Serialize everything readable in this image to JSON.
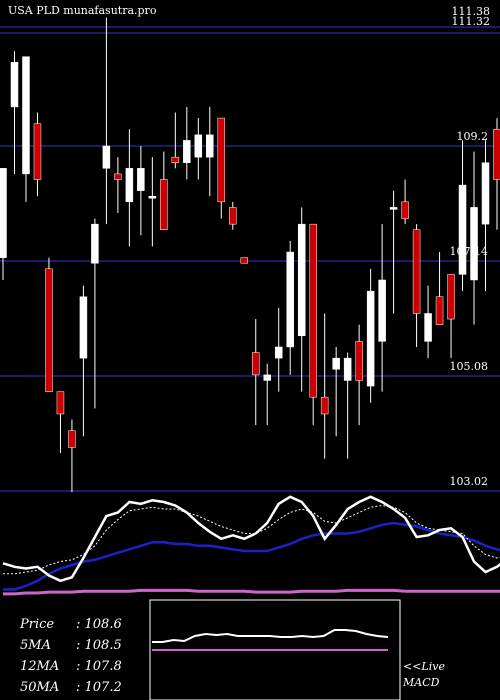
{
  "header": {
    "title": "USA PLD munafasutra.pro",
    "top_price": "111.38",
    "top_price_alt": "111.32"
  },
  "chart_data": {
    "type": "candlestick",
    "symbol": "PLD",
    "yaxis_ticks": [
      103.02,
      105.08,
      107.14,
      109.2,
      111.38
    ],
    "ylim": [
      103.02,
      111.5
    ],
    "candles": [
      {
        "o": 107.2,
        "h": 108.8,
        "l": 106.8,
        "c": 108.8,
        "up": true
      },
      {
        "o": 109.9,
        "h": 110.9,
        "l": 108.7,
        "c": 110.7,
        "up": true
      },
      {
        "o": 108.7,
        "h": 110.8,
        "l": 108.2,
        "c": 110.8,
        "up": true
      },
      {
        "o": 109.6,
        "h": 109.8,
        "l": 108.3,
        "c": 108.6,
        "up": false
      },
      {
        "o": 107.0,
        "h": 107.2,
        "l": 104.8,
        "c": 104.8,
        "up": false
      },
      {
        "o": 104.4,
        "h": 104.8,
        "l": 103.7,
        "c": 104.8,
        "up": false
      },
      {
        "o": 103.8,
        "h": 104.3,
        "l": 103.0,
        "c": 104.1,
        "up": false
      },
      {
        "o": 105.4,
        "h": 106.7,
        "l": 104.0,
        "c": 106.5,
        "up": true
      },
      {
        "o": 107.1,
        "h": 107.9,
        "l": 104.5,
        "c": 107.8,
        "up": true
      },
      {
        "o": 108.8,
        "h": 111.5,
        "l": 107.8,
        "c": 109.2,
        "up": true
      },
      {
        "o": 108.6,
        "h": 109.0,
        "l": 108.0,
        "c": 108.7,
        "up": false
      },
      {
        "o": 108.2,
        "h": 109.5,
        "l": 107.4,
        "c": 108.8,
        "up": true
      },
      {
        "o": 108.4,
        "h": 109.2,
        "l": 107.6,
        "c": 108.8,
        "up": true
      },
      {
        "o": 108.3,
        "h": 109.0,
        "l": 107.4,
        "c": 108.3,
        "up": true
      },
      {
        "o": 108.6,
        "h": 109.1,
        "l": 107.7,
        "c": 107.7,
        "up": false
      },
      {
        "o": 109.0,
        "h": 109.8,
        "l": 108.8,
        "c": 108.9,
        "up": false
      },
      {
        "o": 108.9,
        "h": 109.9,
        "l": 108.6,
        "c": 109.3,
        "up": true
      },
      {
        "o": 109.0,
        "h": 109.7,
        "l": 108.6,
        "c": 109.4,
        "up": true
      },
      {
        "o": 109.0,
        "h": 109.9,
        "l": 108.3,
        "c": 109.4,
        "up": true
      },
      {
        "o": 109.7,
        "h": 109.7,
        "l": 107.9,
        "c": 108.2,
        "up": false
      },
      {
        "o": 108.1,
        "h": 108.2,
        "l": 107.7,
        "c": 107.8,
        "up": false
      },
      {
        "o": 107.2,
        "h": 107.2,
        "l": 107.1,
        "c": 107.1,
        "up": false
      },
      {
        "o": 105.1,
        "h": 106.1,
        "l": 104.2,
        "c": 105.5,
        "up": false
      },
      {
        "o": 105.0,
        "h": 105.3,
        "l": 104.2,
        "c": 105.1,
        "up": true
      },
      {
        "o": 105.4,
        "h": 106.3,
        "l": 104.8,
        "c": 105.6,
        "up": true
      },
      {
        "o": 105.6,
        "h": 107.5,
        "l": 105.1,
        "c": 107.3,
        "up": true
      },
      {
        "o": 105.8,
        "h": 108.1,
        "l": 104.8,
        "c": 107.8,
        "up": true
      },
      {
        "o": 107.8,
        "h": 107.8,
        "l": 104.2,
        "c": 104.7,
        "up": false
      },
      {
        "o": 104.7,
        "h": 106.2,
        "l": 103.6,
        "c": 104.4,
        "up": false
      },
      {
        "o": 105.2,
        "h": 105.6,
        "l": 104.0,
        "c": 105.4,
        "up": true
      },
      {
        "o": 105.0,
        "h": 105.5,
        "l": 103.6,
        "c": 105.4,
        "up": true
      },
      {
        "o": 105.7,
        "h": 106.0,
        "l": 104.2,
        "c": 105.0,
        "up": false
      },
      {
        "o": 104.9,
        "h": 107.0,
        "l": 104.6,
        "c": 106.6,
        "up": true
      },
      {
        "o": 105.7,
        "h": 107.8,
        "l": 104.8,
        "c": 106.8,
        "up": true
      },
      {
        "o": 108.1,
        "h": 108.4,
        "l": 106.2,
        "c": 108.1,
        "up": true
      },
      {
        "o": 108.2,
        "h": 108.6,
        "l": 107.8,
        "c": 107.9,
        "up": false
      },
      {
        "o": 107.7,
        "h": 107.8,
        "l": 105.6,
        "c": 106.2,
        "up": false
      },
      {
        "o": 105.7,
        "h": 106.7,
        "l": 105.4,
        "c": 106.2,
        "up": true
      },
      {
        "o": 106.5,
        "h": 107.3,
        "l": 106.0,
        "c": 106.0,
        "up": false
      },
      {
        "o": 106.9,
        "h": 106.9,
        "l": 105.4,
        "c": 106.1,
        "up": false
      },
      {
        "o": 106.9,
        "h": 109.3,
        "l": 106.6,
        "c": 108.5,
        "up": true
      },
      {
        "o": 106.8,
        "h": 109.1,
        "l": 106.0,
        "c": 108.1,
        "up": true
      },
      {
        "o": 107.8,
        "h": 109.3,
        "l": 106.6,
        "c": 108.9,
        "up": true
      },
      {
        "o": 109.5,
        "h": 109.7,
        "l": 107.7,
        "c": 108.6,
        "up": false
      }
    ],
    "osc": {
      "white": [
        42,
        38,
        36,
        38,
        28,
        22,
        26,
        48,
        72,
        96,
        100,
        112,
        110,
        114,
        112,
        108,
        100,
        88,
        78,
        70,
        74,
        70,
        76,
        88,
        110,
        118,
        112,
        96,
        70,
        86,
        104,
        112,
        118,
        112,
        104,
        94,
        72,
        74,
        80,
        82,
        72,
        44,
        32,
        38,
        48
      ],
      "dotted": [
        30,
        30,
        32,
        34,
        40,
        44,
        46,
        52,
        62,
        80,
        92,
        102,
        104,
        106,
        104,
        104,
        100,
        96,
        90,
        84,
        80,
        76,
        76,
        82,
        92,
        100,
        104,
        100,
        90,
        88,
        94,
        100,
        106,
        108,
        106,
        100,
        88,
        82,
        80,
        78,
        76,
        62,
        52,
        48,
        50
      ],
      "blue": [
        12,
        12,
        16,
        22,
        30,
        36,
        40,
        44,
        46,
        50,
        54,
        58,
        62,
        66,
        66,
        64,
        64,
        62,
        62,
        60,
        58,
        56,
        56,
        56,
        60,
        64,
        70,
        74,
        76,
        76,
        76,
        78,
        82,
        86,
        88,
        86,
        84,
        80,
        76,
        74,
        72,
        68,
        62,
        58,
        54
      ],
      "magenta": [
        7,
        7,
        8,
        8,
        9,
        9,
        9,
        10,
        10,
        10,
        10,
        10,
        11,
        11,
        11,
        11,
        11,
        10,
        10,
        10,
        10,
        10,
        9,
        9,
        9,
        9,
        10,
        10,
        10,
        10,
        11,
        11,
        11,
        11,
        11,
        10,
        10,
        10,
        10,
        10,
        10,
        10,
        10,
        10,
        10
      ],
      "macd_white": [
        0,
        0,
        -2,
        -1,
        -6,
        -8,
        -7,
        -8,
        -6,
        -6,
        -6,
        -6,
        -5,
        -5,
        -6,
        -5,
        -6,
        -12,
        -12,
        -11,
        -8,
        -6,
        -5
      ],
      "macd_magenta": [
        0,
        0,
        0,
        0,
        0,
        0,
        0,
        0,
        0,
        0,
        0,
        0,
        0,
        0,
        0,
        0,
        0,
        0,
        0,
        0,
        0,
        0,
        0
      ]
    }
  },
  "stats": {
    "price_label": "Price",
    "price_value": ": 108.6",
    "ma5_label": "5MA",
    "ma5_value": ": 108.5",
    "ma12_label": "12MA",
    "ma12_value": ": 107.8",
    "ma50_label": "50MA",
    "ma50_value": ": 107.2"
  },
  "macd": {
    "live_label": "<<Live",
    "name": "MACD"
  },
  "colors": {
    "up": "#ffffff",
    "down": "#cc0000",
    "grid": "#1a1a66",
    "magenta": "#cc66cc",
    "blue": "#1a22cc"
  }
}
